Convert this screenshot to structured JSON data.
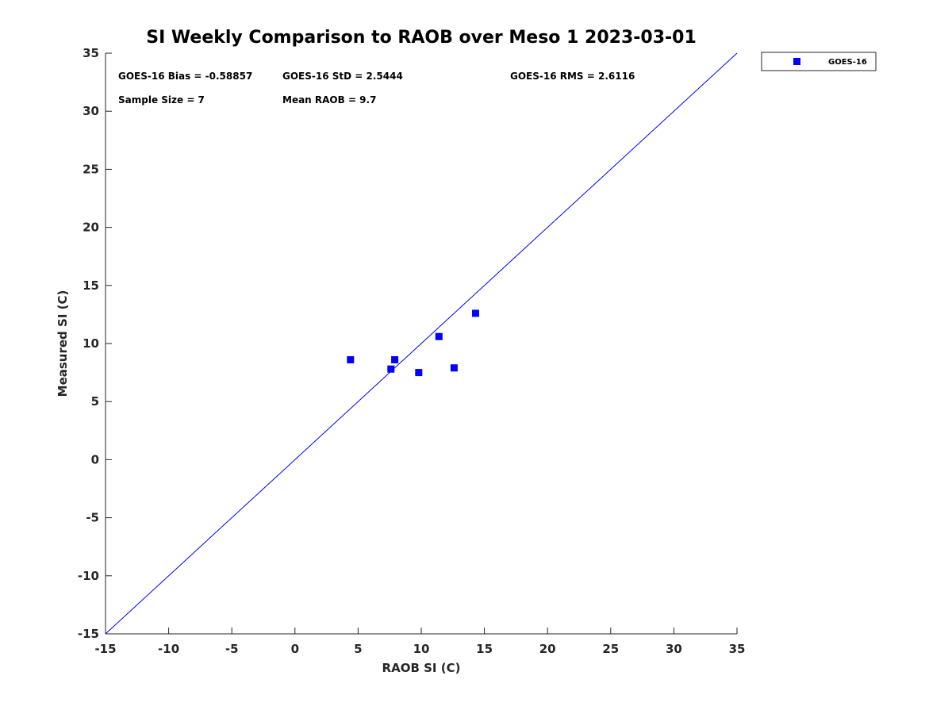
{
  "chart_data": {
    "type": "scatter",
    "title": "SI Weekly Comparison to RAOB over Meso 1 2023-03-01",
    "xlabel": "RAOB SI (C)",
    "ylabel": "Measured SI (C)",
    "xlim": [
      -15,
      35
    ],
    "ylim": [
      -15,
      35
    ],
    "xticks": [
      -15,
      -10,
      -5,
      0,
      5,
      10,
      15,
      20,
      25,
      30,
      35
    ],
    "yticks": [
      -15,
      -10,
      -5,
      0,
      5,
      10,
      15,
      20,
      25,
      30,
      35
    ],
    "grid": false,
    "legend_position": "outside-top-right",
    "series": [
      {
        "name": "GOES-16",
        "color": "#0000ff",
        "marker": "square",
        "x": [
          4.4,
          7.9,
          7.6,
          9.8,
          11.4,
          12.6,
          14.3
        ],
        "y": [
          8.6,
          8.6,
          7.8,
          7.5,
          10.6,
          7.9,
          12.6
        ]
      }
    ],
    "reference_line": {
      "name": "1:1",
      "color": "#0000ff",
      "x": [
        -15,
        35
      ],
      "y": [
        -15,
        35
      ]
    },
    "annotations": [
      "GOES-16 Bias = -0.58857",
      "GOES-16 StD = 2.5444",
      "GOES-16 RMS = 2.6116",
      "Sample Size = 7",
      "Mean RAOB = 9.7"
    ]
  }
}
